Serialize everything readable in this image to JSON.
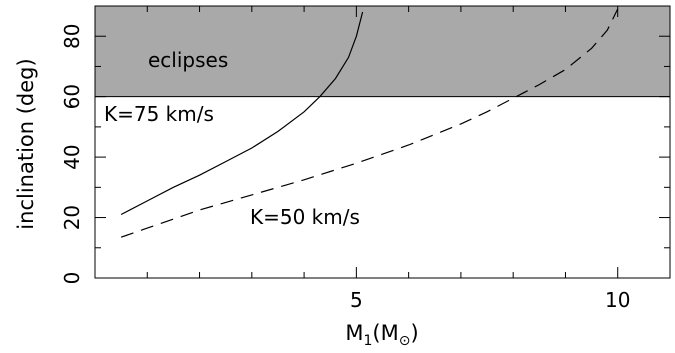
{
  "chart_data": {
    "type": "line",
    "xlabel": "M",
    "xlabel_sub": "1",
    "xlabel_unit": "M",
    "xlabel_unit_symbol": "⊙",
    "ylabel": "inclination (deg)",
    "xlim": [
      0,
      11
    ],
    "ylim": [
      0,
      90
    ],
    "x_major_ticks": [
      5,
      10
    ],
    "x_minor_ticks": [
      1,
      2,
      3,
      4,
      6,
      7,
      8,
      9
    ],
    "y_major_ticks": [
      0,
      20,
      40,
      60,
      80
    ],
    "y_minor_ticks": [
      10,
      30,
      50,
      70
    ],
    "x_tick_labels": [
      "5",
      "10"
    ],
    "y_tick_labels": [
      "0",
      "20",
      "40",
      "60",
      "80"
    ],
    "grid": false,
    "shaded_region": {
      "label": "eclipses",
      "y_from": 60,
      "y_to": 90,
      "color": "#a9a9a9"
    },
    "series": [
      {
        "name": "K=75 km/s",
        "style": "solid",
        "color": "#000000",
        "x": [
          0.5,
          1.0,
          1.5,
          2.0,
          2.5,
          3.0,
          3.5,
          4.0,
          4.3,
          4.6,
          4.85,
          5.0,
          5.12
        ],
        "y": [
          21,
          25.5,
          30,
          34,
          38.5,
          43,
          48.5,
          55,
          60,
          66,
          73,
          80,
          88
        ]
      },
      {
        "name": "K=50 km/s",
        "style": "dashed",
        "color": "#000000",
        "x": [
          0.5,
          1.0,
          2.0,
          3.0,
          4.0,
          5.0,
          6.0,
          7.0,
          7.5,
          8.0,
          8.5,
          9.0,
          9.5,
          9.8,
          10.0
        ],
        "y": [
          13.5,
          16.5,
          22.5,
          27.5,
          32.5,
          38,
          44,
          51,
          55,
          59.5,
          64,
          69,
          76,
          82,
          89
        ]
      }
    ]
  },
  "labels": {
    "eclipses": "eclipses",
    "k75": "K=75 km/s",
    "k50": "K=50 km/s"
  }
}
